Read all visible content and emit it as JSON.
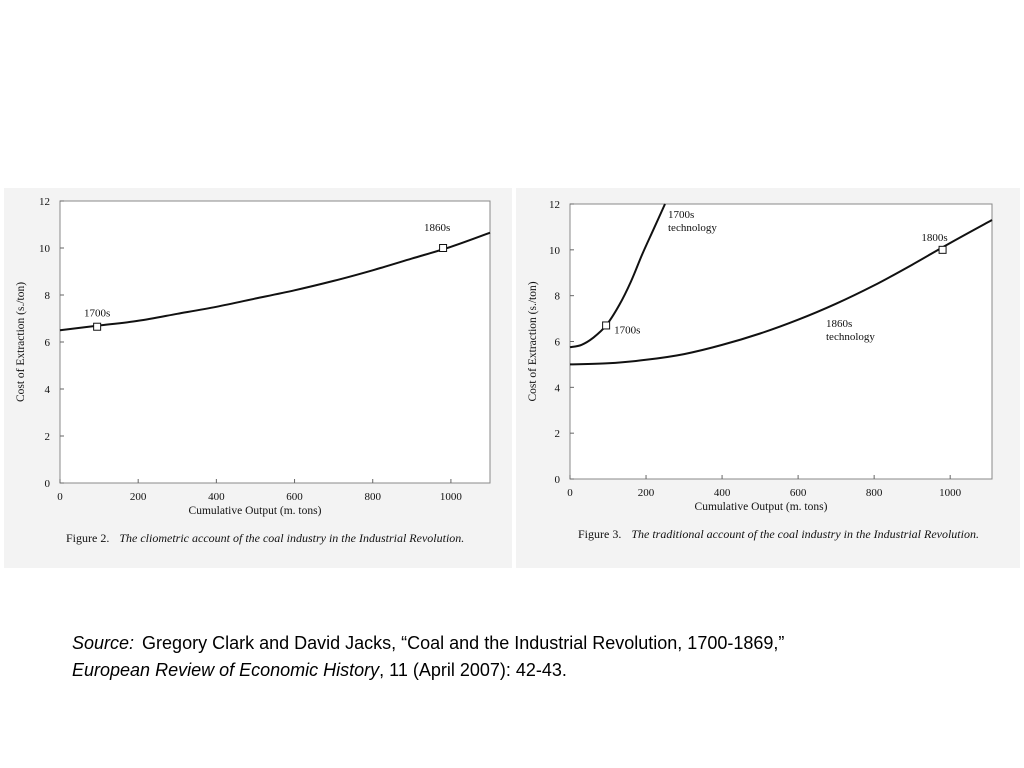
{
  "chart_data": [
    {
      "type": "line",
      "xlabel": "Cumulative Output (m. tons)",
      "ylabel": "Cost of Extraction (s./ton)",
      "xlim": [
        0,
        1100
      ],
      "ylim": [
        0,
        12
      ],
      "xticks": [
        0,
        200,
        400,
        600,
        800,
        1000
      ],
      "yticks": [
        0,
        2,
        4,
        6,
        8,
        10,
        12
      ],
      "grid": false,
      "series": [
        {
          "x": [
            0,
            100,
            200,
            300,
            400,
            500,
            600,
            700,
            800,
            900,
            1000,
            1100
          ],
          "values": [
            6.5,
            6.7,
            6.9,
            7.2,
            7.5,
            7.85,
            8.2,
            8.6,
            9.05,
            9.55,
            10.05,
            10.65
          ]
        }
      ],
      "annotations": [
        {
          "text": "1700s",
          "x": 95,
          "y": 6.65
        },
        {
          "text": "1860s",
          "x": 980,
          "y": 10.0
        }
      ],
      "caption_label": "Figure 2.",
      "caption_text": "The cliometric account of the coal industry in the Industrial Revolution."
    },
    {
      "type": "line",
      "xlabel": "Cumulative Output (m. tons)",
      "ylabel": "Cost of Extraction (s./ton)",
      "xlim": [
        0,
        1110
      ],
      "ylim": [
        0,
        12
      ],
      "xticks": [
        0,
        200,
        400,
        600,
        800,
        1000
      ],
      "yticks": [
        0,
        2,
        4,
        6,
        8,
        10,
        12
      ],
      "grid": false,
      "series": [
        {
          "label": "1700s\ntechnology",
          "x": [
            0,
            30,
            60,
            95,
            130,
            160,
            190,
            220,
            250
          ],
          "values": [
            5.75,
            5.85,
            6.15,
            6.7,
            7.6,
            8.6,
            9.8,
            10.9,
            12.0
          ]
        },
        {
          "label": "1860s\ntechnology",
          "x": [
            0,
            100,
            200,
            300,
            400,
            500,
            600,
            700,
            800,
            900,
            1000,
            1110
          ],
          "values": [
            5.0,
            5.05,
            5.2,
            5.45,
            5.85,
            6.35,
            6.95,
            7.65,
            8.45,
            9.35,
            10.3,
            11.3
          ]
        }
      ],
      "annotations": [
        {
          "text": "1700s",
          "x": 95,
          "y": 6.7
        },
        {
          "text": "1800s",
          "x": 980,
          "y": 10.0
        }
      ],
      "caption_label": "Figure 3.",
      "caption_text": "The traditional account of the coal industry in the Industrial Revolution."
    }
  ],
  "source": {
    "label": "Source:",
    "authors_title": "Gregory Clark and David Jacks, “Coal and the Industrial Revolution, 1700-1869,”",
    "journal": "European Review of Economic History",
    "details": ", 11 (April 2007): 42-43."
  }
}
